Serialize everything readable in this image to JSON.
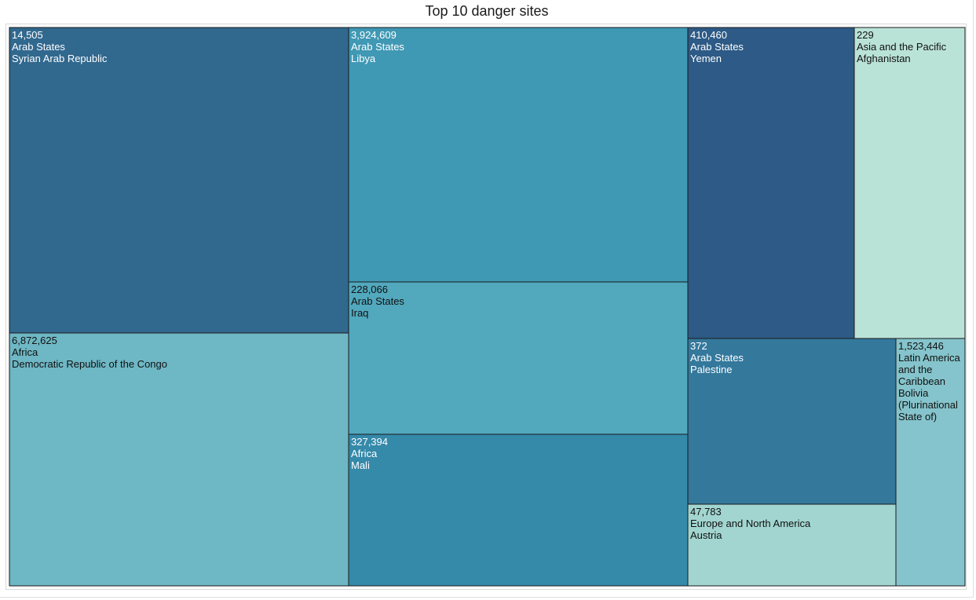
{
  "title": "Top 10 danger sites",
  "chart_data": {
    "type": "treemap",
    "title": "Top 10 danger sites",
    "tiles": [
      {
        "value": "14,505",
        "region": "Arab States",
        "country": "Syrian Arab Republic",
        "color": "#31688e",
        "text_color": "#ffffff"
      },
      {
        "value": "6,872,625",
        "region": "Africa",
        "country": "Democratic Republic of the Congo",
        "color": "#6eb7c4",
        "text_color": "#111111"
      },
      {
        "value": "3,924,609",
        "region": "Arab States",
        "country": "Libya",
        "color": "#3f98b4",
        "text_color": "#ffffff"
      },
      {
        "value": "228,066",
        "region": "Arab States",
        "country": "Iraq",
        "color": "#52a8bd",
        "text_color": "#111111"
      },
      {
        "value": "327,394",
        "region": "Africa",
        "country": "Mali",
        "color": "#3589a9",
        "text_color": "#ffffff"
      },
      {
        "value": "410,460",
        "region": "Arab States",
        "country": "Yemen",
        "color": "#2d5a86",
        "text_color": "#ffffff"
      },
      {
        "value": "229",
        "region": "Asia and the Pacific",
        "country": "Afghanistan",
        "color": "#bae3d8",
        "text_color": "#111111"
      },
      {
        "value": "372",
        "region": "Arab States",
        "country": "Palestine",
        "color": "#34789c",
        "text_color": "#ffffff"
      },
      {
        "value": "47,783",
        "region": "Europe and North America",
        "country": "Austria",
        "color": "#a2d5d0",
        "text_color": "#111111"
      },
      {
        "value": "1,523,446",
        "region": "Latin America and the Caribbean",
        "country": "Bolivia (Plurinational State of)",
        "color": "#85c4cc",
        "text_color": "#111111"
      }
    ]
  }
}
